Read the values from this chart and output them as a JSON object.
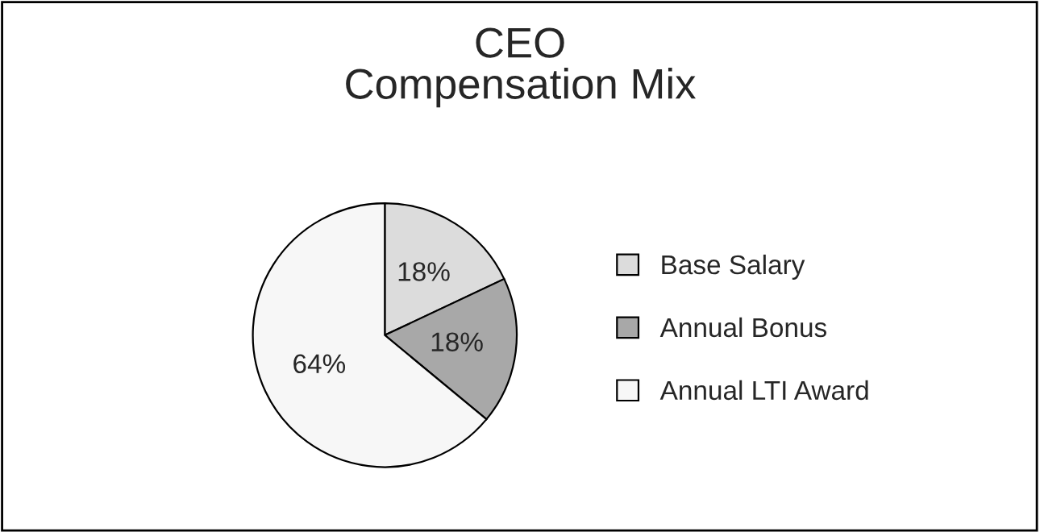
{
  "chart_data": {
    "type": "pie",
    "title": "CEO\nCompensation Mix",
    "categories": [
      "Base Salary",
      "Annual Bonus",
      "Annual LTI Award"
    ],
    "values": [
      18,
      18,
      64
    ],
    "colors": [
      "#dcdcdc",
      "#a8a8a8",
      "#f7f7f7"
    ],
    "value_labels": [
      "18%",
      "18%",
      "64%"
    ],
    "legend": "right"
  }
}
